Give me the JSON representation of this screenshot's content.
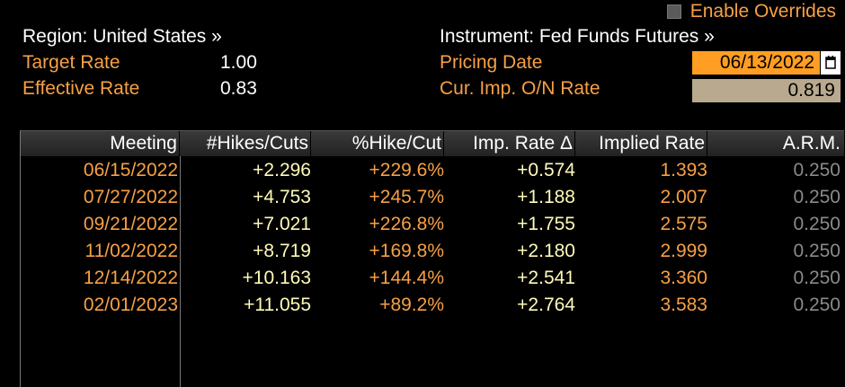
{
  "override": {
    "label": "Enable Overrides",
    "checked": false
  },
  "region": {
    "label": "Region: United States »"
  },
  "instrument": {
    "label": "Instrument: Fed Funds Futures »"
  },
  "target_rate": {
    "label": "Target Rate",
    "value": "1.00"
  },
  "effective_rate": {
    "label": "Effective Rate",
    "value": "0.83"
  },
  "pricing_date": {
    "label": "Pricing Date",
    "value": "06/13/2022"
  },
  "on_rate": {
    "label": "Cur. Imp. O/N Rate",
    "value": "0.819"
  },
  "table": {
    "headers": [
      "Meeting",
      "#Hikes/Cuts",
      "%Hike/Cut",
      "Imp. Rate Δ",
      "Implied Rate",
      "A.R.M."
    ],
    "rows": [
      [
        "06/15/2022",
        "+2.296",
        "+229.6%",
        "+0.574",
        "1.393",
        "0.250"
      ],
      [
        "07/27/2022",
        "+4.753",
        "+245.7%",
        "+1.188",
        "2.007",
        "0.250"
      ],
      [
        "09/21/2022",
        "+7.021",
        "+226.8%",
        "+1.755",
        "2.575",
        "0.250"
      ],
      [
        "11/02/2022",
        "+8.719",
        "+169.8%",
        "+2.180",
        "2.999",
        "0.250"
      ],
      [
        "12/14/2022",
        "+10.163",
        "+144.4%",
        "+2.541",
        "3.360",
        "0.250"
      ],
      [
        "02/01/2023",
        "+11.055",
        "+89.2%",
        "+2.764",
        "3.583",
        "0.250"
      ]
    ]
  },
  "colors": {
    "label_orange": "#f7a046",
    "value_yellow": "#fffab8",
    "date_field_bg": "#ff9e22",
    "rate_field_bg": "#b9a98f",
    "arm_gray": "#8a8a8a"
  }
}
